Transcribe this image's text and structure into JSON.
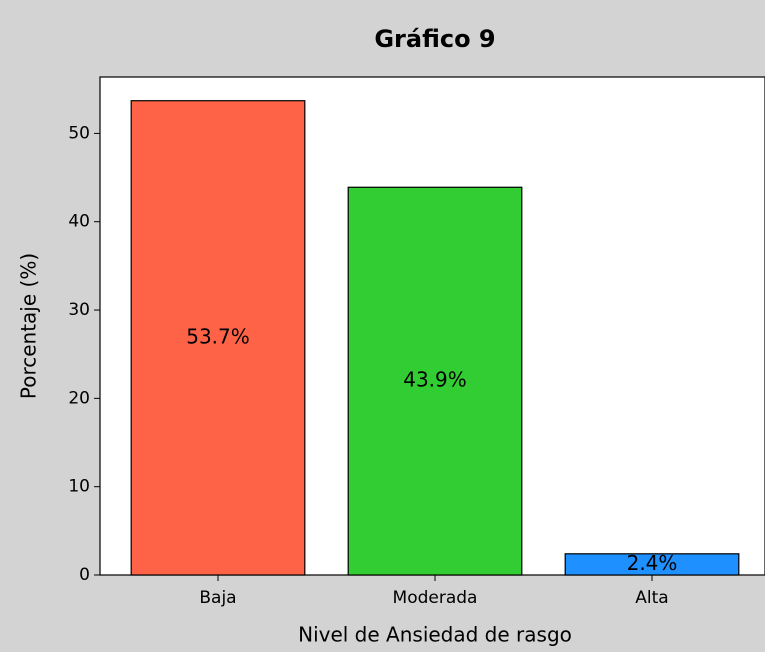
{
  "chart_data": {
    "type": "bar",
    "title": "Gráfico 9",
    "x_label": "Nivel de Ansiedad de rasgo",
    "y_label": "Porcentaje (%)",
    "categories": [
      "Baja",
      "Moderada",
      "Alta"
    ],
    "values": [
      53.7,
      43.9,
      2.4
    ],
    "value_labels": [
      "53.7%",
      "43.9%",
      "2.4%"
    ],
    "colors": [
      "#ff6347",
      "#32cd32",
      "#1e90ff"
    ],
    "ylim": [
      0,
      56.385
    ],
    "yticks": [
      0,
      10,
      20,
      30,
      40,
      50
    ],
    "grid": false
  }
}
